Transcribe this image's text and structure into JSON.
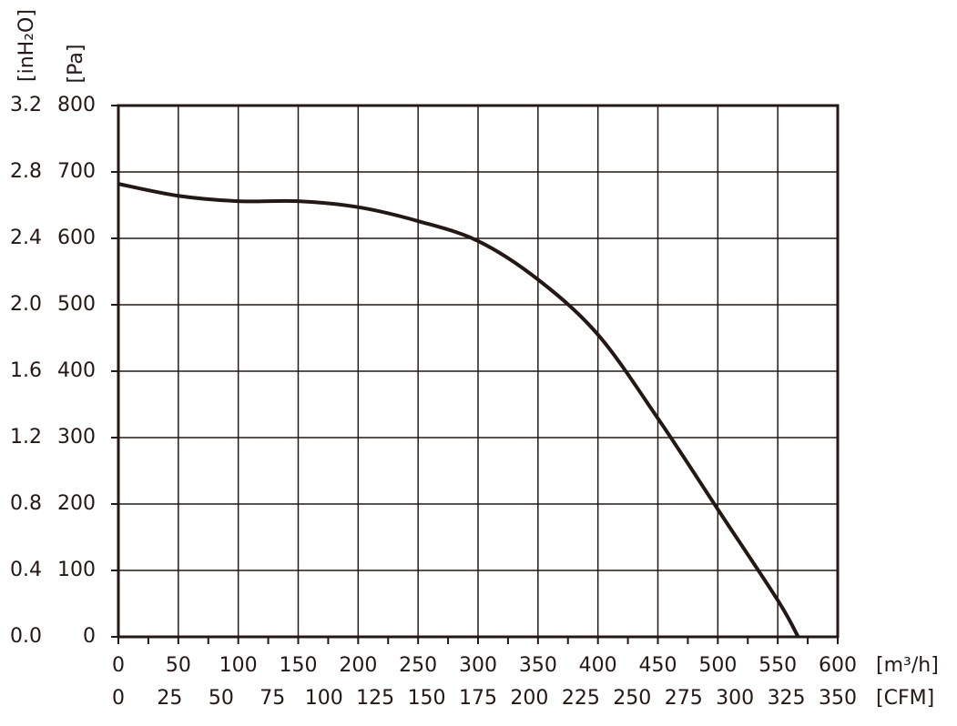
{
  "chart_data": {
    "type": "line",
    "x_label": "[m³/h]",
    "x2_label": "[CFM]",
    "y_label": "[Pa]",
    "y2_label": "[inH₂O]",
    "x": [
      0,
      50,
      100,
      150,
      200,
      250,
      300,
      350,
      400,
      450,
      500,
      550,
      567
    ],
    "series": [
      {
        "color": "#231815",
        "values": [
          682,
          664,
          656,
          656,
          647,
          626,
          596,
          538,
          455,
          329,
          192,
          55,
          0
        ]
      }
    ],
    "xlim": [
      0,
      600
    ],
    "xticks": [
      0,
      50,
      100,
      150,
      200,
      250,
      300,
      350,
      400,
      450,
      500,
      550,
      600
    ],
    "x2lim": [
      0,
      350
    ],
    "x2ticks": [
      0,
      25,
      50,
      75,
      100,
      125,
      150,
      175,
      200,
      225,
      250,
      275,
      300,
      325,
      350
    ],
    "ylim": [
      0,
      800
    ],
    "yticks": [
      0,
      100,
      200,
      300,
      400,
      500,
      600,
      700,
      800
    ],
    "y2lim": [
      0,
      3.2
    ],
    "y2ticks": [
      {
        "value": 0,
        "label": "0.0"
      },
      0.4,
      0.8,
      1.2,
      1.6,
      {
        "value": 2,
        "label": "2.0"
      },
      2.4,
      2.8,
      3.2
    ],
    "grid": true
  }
}
